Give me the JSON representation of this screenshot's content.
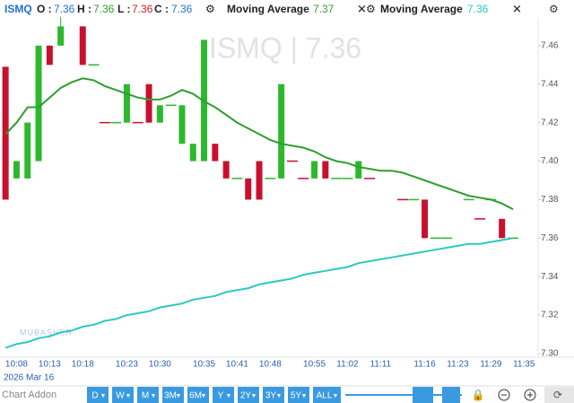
{
  "header": {
    "symbol": "ISMQ",
    "fields": [
      {
        "label": "O :",
        "value": 7.36,
        "color": "#1f6fd1"
      },
      {
        "label": "H :",
        "value": 7.36,
        "color": "#2a9d2a"
      },
      {
        "label": "L :",
        "value": 7.36,
        "color": "#d0202a"
      },
      {
        "label": "C :",
        "value": 7.36,
        "color": "#1f6fd1"
      }
    ]
  },
  "chart_data": {
    "type": "candlestick",
    "watermark": "ISMQ  |  7.36",
    "date_label": "2026 Mar 16",
    "logo": "MUBASHER",
    "categories": [
      null,
      "10:08",
      null,
      null,
      "10:13",
      null,
      null,
      "10:18",
      null,
      null,
      null,
      "10:23",
      null,
      null,
      "10:30",
      null,
      null,
      null,
      "10:35",
      null,
      null,
      "10:41",
      null,
      null,
      "10:48",
      null,
      null,
      null,
      "10:55",
      null,
      null,
      "11:02",
      null,
      null,
      "11:11",
      null,
      null,
      null,
      "11:16",
      null,
      null,
      "11:23",
      null,
      null,
      "11:29",
      null,
      null,
      "11:35",
      null
    ],
    "open": [
      7.449,
      7.391,
      7.391,
      7.4,
      7.46,
      7.46,
      null,
      7.47,
      7.45,
      7.42,
      7.42,
      7.42,
      7.42,
      7.44,
      7.42,
      7.429,
      7.409,
      7.4,
      7.4,
      7.409,
      7.4,
      7.391,
      7.391,
      7.4,
      7.391,
      7.391,
      7.4,
      7.391,
      7.391,
      7.4,
      7.391,
      7.391,
      7.391,
      7.391,
      null,
      null,
      7.38,
      7.38,
      7.38,
      7.36,
      7.36,
      null,
      7.38,
      7.37,
      7.38,
      7.37,
      7.36,
      null,
      null
    ],
    "high": [
      7.449,
      7.4,
      7.42,
      7.46,
      7.46,
      7.475,
      null,
      7.47,
      7.45,
      7.42,
      7.42,
      7.44,
      7.42,
      7.44,
      7.429,
      7.429,
      7.429,
      7.409,
      7.463,
      7.409,
      7.4,
      7.391,
      7.391,
      7.4,
      7.391,
      7.44,
      7.4,
      7.391,
      7.4,
      7.4,
      7.391,
      7.391,
      7.4,
      7.391,
      null,
      null,
      7.38,
      7.38,
      7.38,
      7.36,
      7.36,
      null,
      7.38,
      7.37,
      7.38,
      7.37,
      7.36,
      null,
      null
    ],
    "low": [
      7.38,
      7.391,
      7.391,
      7.4,
      7.45,
      7.46,
      null,
      7.45,
      7.45,
      7.42,
      7.42,
      7.42,
      7.42,
      7.42,
      7.42,
      7.429,
      7.409,
      7.4,
      7.4,
      7.4,
      7.391,
      7.391,
      7.38,
      7.38,
      7.391,
      7.391,
      7.4,
      7.391,
      7.391,
      7.391,
      7.391,
      7.391,
      7.391,
      7.391,
      null,
      null,
      7.38,
      7.38,
      7.36,
      7.36,
      7.36,
      null,
      7.38,
      7.37,
      7.38,
      7.36,
      7.36,
      null,
      null
    ],
    "close": [
      7.38,
      7.4,
      7.42,
      7.46,
      7.45,
      7.47,
      null,
      7.45,
      7.45,
      7.42,
      7.42,
      7.44,
      7.42,
      7.42,
      7.429,
      7.429,
      7.429,
      7.409,
      7.463,
      7.4,
      7.391,
      7.391,
      7.38,
      7.38,
      7.391,
      7.44,
      7.4,
      7.391,
      7.4,
      7.391,
      7.391,
      7.391,
      7.4,
      7.391,
      null,
      null,
      7.38,
      7.38,
      7.36,
      7.36,
      7.36,
      null,
      7.38,
      7.37,
      7.38,
      7.36,
      7.36,
      null,
      null
    ],
    "up_color": "#2db82d",
    "down_color": "#c8102e",
    "series": [
      {
        "name": "Moving Average",
        "color": "#2e9e2e",
        "legend_value": 7.37,
        "values": [
          7.414,
          7.42,
          7.428,
          7.428,
          7.433,
          7.438,
          7.441,
          7.443,
          7.442,
          7.439,
          7.437,
          7.435,
          7.433,
          7.432,
          7.432,
          7.434,
          7.437,
          7.435,
          7.431,
          7.428,
          7.424,
          7.42,
          7.417,
          7.414,
          7.411,
          7.409,
          7.408,
          7.407,
          7.405,
          7.402,
          7.4,
          7.399,
          7.397,
          7.396,
          7.395,
          7.395,
          7.394,
          7.392,
          7.39,
          7.388,
          7.386,
          7.384,
          7.382,
          7.381,
          7.38,
          7.378,
          7.375,
          null,
          null
        ]
      },
      {
        "name": "Moving Average",
        "color": "#2ec8c0",
        "legend_value": 7.36,
        "values": [
          7.303,
          7.305,
          7.306,
          7.308,
          7.309,
          7.311,
          7.312,
          7.314,
          7.315,
          7.317,
          7.318,
          7.32,
          7.321,
          7.322,
          7.324,
          7.325,
          7.326,
          7.328,
          7.329,
          7.33,
          7.332,
          7.333,
          7.334,
          7.336,
          7.337,
          7.338,
          7.339,
          7.341,
          7.342,
          7.343,
          7.344,
          7.345,
          7.347,
          7.348,
          7.349,
          7.35,
          7.351,
          7.352,
          7.353,
          7.354,
          7.355,
          7.356,
          7.357,
          7.357,
          7.358,
          7.359,
          7.36,
          null,
          null
        ]
      }
    ],
    "ylim": [
      7.2972,
      7.4837
    ],
    "yticks": [
      {
        "value": 7.3,
        "label": "7.30"
      },
      7.32,
      7.34,
      7.36,
      7.38,
      {
        "value": 7.4,
        "label": "7.40"
      },
      7.42,
      7.44,
      7.46
    ]
  },
  "toolbar": {
    "addon": "Chart Addon",
    "ranges": [
      "D",
      "W",
      "M",
      "3M",
      "6M",
      "Y",
      "2Y",
      "3Y",
      "5Y",
      "ALL"
    ]
  }
}
